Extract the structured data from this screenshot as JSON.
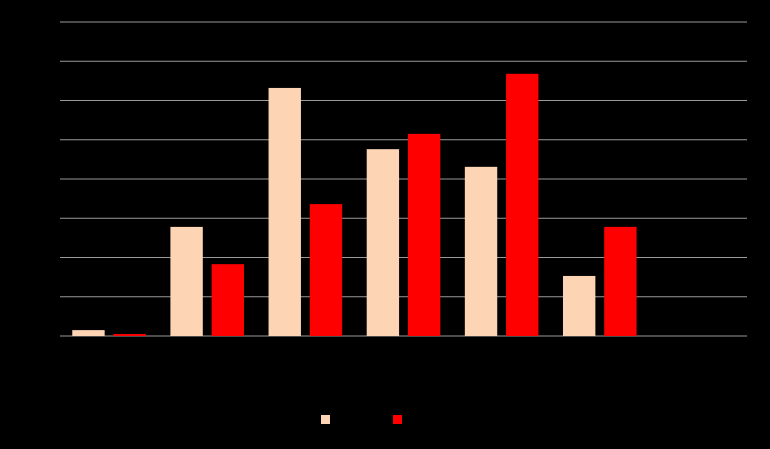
{
  "chart_data": {
    "type": "bar",
    "categories": [
      null,
      null,
      null,
      null,
      null,
      null,
      null
    ],
    "series": [
      {
        "color": "#fdd5b4",
        "values": [
          0.15,
          2.78,
          6.32,
          4.76,
          4.31,
          1.53,
          null
        ]
      },
      {
        "color": "#ff0000",
        "values": [
          0.05,
          1.83,
          3.36,
          5.15,
          6.68,
          2.78,
          null
        ]
      }
    ],
    "ylim": [
      0,
      8
    ],
    "yticks": [
      0,
      1,
      2,
      3,
      4,
      5,
      6,
      7,
      8
    ],
    "grid": true
  }
}
